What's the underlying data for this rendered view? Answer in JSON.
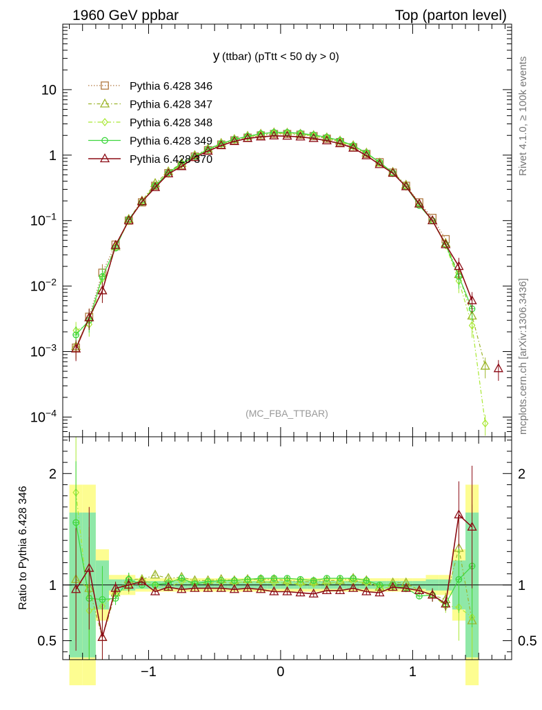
{
  "header": {
    "left": "1960 GeV ppbar",
    "right": "Top (parton level)"
  },
  "side": {
    "rivet": "Rivet 4.1.0, ≥ 100k events",
    "mcplots": "mcplots.cern.ch [arXiv:1306.3436]"
  },
  "colors": {
    "s346": "#b07840",
    "s347": "#9bb429",
    "s348": "#a8e832",
    "s349": "#3cd63c",
    "s370": "#8b0a14",
    "band_yellow": "#fdfd91",
    "band_green": "#8fe8a8"
  },
  "chart_data": [
    {
      "type": "line",
      "title": "y (ttbar) (pTtt < 50 dy > 0)",
      "title_main": "y",
      "title_sub": "(ttbar) (pTtt < 50 dy > 0)",
      "watermark": "(MC_FBA_TTBAR)",
      "xlabel": "",
      "ylabel": "",
      "yscale": "log",
      "xlim": [
        -1.65,
        1.75
      ],
      "ylim": [
        5e-05,
        100
      ],
      "y_tick_labels": [
        "10",
        "1",
        "10−1",
        "10−2",
        "10−3",
        "10−4"
      ],
      "x": [
        -1.55,
        -1.45,
        -1.35,
        -1.25,
        -1.15,
        -1.05,
        -0.95,
        -0.85,
        -0.75,
        -0.65,
        -0.55,
        -0.45,
        -0.35,
        -0.25,
        -0.15,
        -0.05,
        0.05,
        0.15,
        0.25,
        0.35,
        0.45,
        0.55,
        0.65,
        0.75,
        0.85,
        0.95,
        1.05,
        1.15,
        1.25,
        1.35,
        1.45,
        1.55,
        1.65
      ],
      "series": [
        {
          "name": "Pythia 6.428 346",
          "key": "s346",
          "marker": "square",
          "dash": "1.5,2.5",
          "values": [
            0.00115,
            0.0034,
            0.016,
            0.043,
            0.1,
            0.19,
            0.34,
            0.53,
            0.7,
            0.95,
            1.19,
            1.45,
            1.68,
            1.85,
            2.0,
            2.1,
            2.1,
            2.05,
            1.95,
            1.78,
            1.58,
            1.32,
            1.04,
            0.78,
            0.54,
            0.34,
            0.19,
            0.11,
            0.052,
            null,
            null,
            null,
            null
          ]
        },
        {
          "name": "Pythia 6.428 347",
          "key": "s347",
          "marker": "triangle",
          "dash": "5,3,1.5,3",
          "values": [
            0.0012,
            0.0033,
            0.0085,
            0.04,
            0.105,
            0.2,
            0.37,
            0.56,
            0.75,
            0.99,
            1.24,
            1.52,
            1.74,
            1.95,
            2.1,
            2.2,
            2.18,
            2.1,
            2.0,
            1.85,
            1.65,
            1.4,
            1.08,
            0.76,
            0.55,
            0.35,
            0.18,
            0.1,
            0.045,
            0.015,
            0.0035,
            0.0006,
            null
          ]
        },
        {
          "name": "Pythia 6.428 348",
          "key": "s348",
          "marker": "diamond",
          "dash": "6,3,1.5,3",
          "values": [
            0.0021,
            0.0026,
            0.013,
            0.04,
            0.098,
            0.2,
            0.34,
            0.52,
            0.72,
            0.97,
            1.21,
            1.48,
            1.72,
            1.9,
            2.05,
            2.15,
            2.14,
            2.08,
            1.96,
            1.8,
            1.62,
            1.36,
            1.06,
            0.76,
            0.53,
            0.33,
            0.18,
            0.1,
            0.042,
            0.012,
            0.0025,
            8e-05,
            null
          ]
        },
        {
          "name": "Pythia 6.428 349",
          "key": "s349",
          "marker": "circle",
          "dash": "",
          "values": [
            0.0018,
            0.003,
            0.014,
            0.038,
            0.105,
            0.19,
            0.34,
            0.54,
            0.74,
            0.96,
            1.22,
            1.5,
            1.74,
            1.94,
            2.12,
            2.22,
            2.22,
            2.16,
            2.03,
            1.88,
            1.67,
            1.4,
            1.08,
            0.78,
            0.54,
            0.33,
            0.17,
            0.1,
            0.043,
            0.014,
            0.0045,
            null,
            null
          ]
        },
        {
          "name": "Pythia 6.428 370",
          "key": "s370",
          "marker": "triangle",
          "dash": "",
          "values": [
            0.0011,
            0.0033,
            0.0085,
            0.042,
            0.1,
            0.195,
            0.32,
            0.52,
            0.67,
            0.92,
            1.15,
            1.4,
            1.62,
            1.8,
            1.9,
            1.97,
            1.95,
            1.9,
            1.8,
            1.66,
            1.5,
            1.28,
            0.98,
            0.72,
            0.53,
            0.33,
            0.18,
            0.1,
            0.043,
            0.02,
            0.006,
            null,
            0.00055
          ]
        }
      ]
    },
    {
      "type": "line",
      "title": "",
      "ylabel": "Ratio to Pythia 6.428 346",
      "xlim": [
        -1.65,
        1.75
      ],
      "ylim": [
        0.33,
        2.33
      ],
      "y_tick_labels": [
        "2",
        "1",
        "0.5"
      ],
      "x_tick_labels": [
        "−1",
        "0",
        "1"
      ],
      "x": [
        -1.55,
        -1.45,
        -1.35,
        -1.25,
        -1.15,
        -1.05,
        -0.95,
        -0.85,
        -0.75,
        -0.65,
        -0.55,
        -0.45,
        -0.35,
        -0.25,
        -0.15,
        -0.05,
        0.05,
        0.15,
        0.25,
        0.35,
        0.45,
        0.55,
        0.65,
        0.75,
        0.85,
        0.95,
        1.05,
        1.15,
        1.25,
        1.35,
        1.45
      ],
      "series": [
        {
          "name": "Pythia 6.428 347",
          "key": "s347",
          "values": [
            1.05,
            0.97,
            0.53,
            0.93,
            1.05,
            1.05,
            1.09,
            1.06,
            1.07,
            1.04,
            1.04,
            1.05,
            1.04,
            1.05,
            1.05,
            1.05,
            1.04,
            1.03,
            1.03,
            1.04,
            1.04,
            1.06,
            1.04,
            0.98,
            1.02,
            1.02,
            0.95,
            0.91,
            0.87,
            1.33,
            0.68
          ]
        },
        {
          "name": "Pythia 6.428 348",
          "key": "s348",
          "values": [
            1.83,
            0.77,
            0.81,
            0.92,
            0.98,
            1.05,
            1.0,
            0.98,
            1.03,
            1.02,
            1.02,
            1.02,
            1.02,
            1.03,
            1.03,
            1.02,
            1.02,
            1.01,
            1.01,
            1.01,
            1.03,
            1.03,
            1.02,
            0.97,
            0.98,
            0.97,
            0.95,
            0.91,
            0.81,
            0.8,
            0.71
          ]
        },
        {
          "name": "Pythia 6.428 349",
          "key": "s349",
          "values": [
            1.56,
            0.88,
            0.87,
            0.88,
            1.05,
            1.0,
            1.0,
            1.02,
            1.06,
            1.01,
            1.03,
            1.04,
            1.04,
            1.05,
            1.06,
            1.06,
            1.06,
            1.05,
            1.04,
            1.06,
            1.06,
            1.06,
            1.04,
            1.0,
            1.0,
            0.97,
            0.9,
            0.91,
            0.83,
            1.05,
            1.17
          ]
        },
        {
          "name": "Pythia 6.428 370",
          "key": "s370",
          "values": [
            0.96,
            1.15,
            0.53,
            0.97,
            1.0,
            1.03,
            0.94,
            0.98,
            0.96,
            0.97,
            0.97,
            0.97,
            0.96,
            0.97,
            0.96,
            0.94,
            0.94,
            0.93,
            0.92,
            0.95,
            0.95,
            0.97,
            0.94,
            0.93,
            0.98,
            0.97,
            0.95,
            0.91,
            0.83,
            1.63,
            1.52
          ]
        }
      ]
    }
  ]
}
